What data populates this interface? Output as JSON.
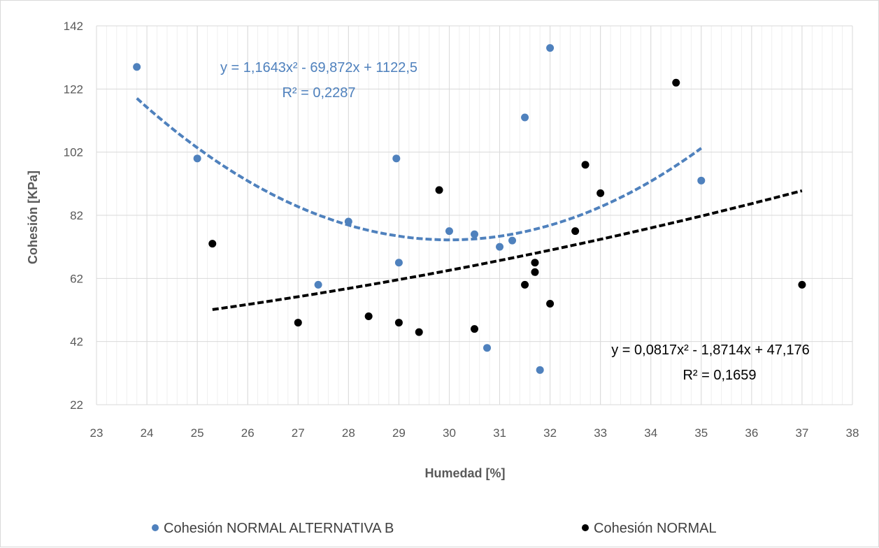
{
  "chart_data": {
    "type": "scatter",
    "xlabel": "Humedad [%]",
    "ylabel": "Cohesión [KPa]",
    "xlim": [
      23,
      38
    ],
    "ylim": [
      22,
      142
    ],
    "x_ticks": [
      "23",
      "24",
      "25",
      "26",
      "27",
      "28",
      "29",
      "30",
      "31",
      "32",
      "33",
      "34",
      "35",
      "36",
      "37",
      "38"
    ],
    "y_ticks": [
      "22",
      "42",
      "62",
      "82",
      "102",
      "122",
      "142"
    ],
    "grid": "vertical major and minor, horizontal major",
    "legend_position": "bottom",
    "series": [
      {
        "name": "Cohesión NORMAL ALTERNATIVA B",
        "color": "#4f81bd",
        "points": [
          [
            23.8,
            129
          ],
          [
            25.0,
            100
          ],
          [
            27.4,
            60
          ],
          [
            28.0,
            80
          ],
          [
            28.95,
            100
          ],
          [
            29.0,
            67
          ],
          [
            30.0,
            77
          ],
          [
            30.5,
            76
          ],
          [
            30.75,
            40
          ],
          [
            31.0,
            72
          ],
          [
            31.25,
            74
          ],
          [
            31.5,
            113
          ],
          [
            31.8,
            33
          ],
          [
            32.0,
            135
          ],
          [
            35.0,
            93
          ]
        ],
        "trendline": {
          "type": "polynomial",
          "coefficients": [
            1.1643,
            -69.872,
            1122.5
          ],
          "x_range": [
            23.8,
            35.0
          ],
          "equation": "y = 1,1643x² - 69,872x + 1122,5",
          "r2": "R² = 0,2287"
        }
      },
      {
        "name": "Cohesión NORMAL",
        "color": "#000000",
        "points": [
          [
            25.3,
            73
          ],
          [
            27.0,
            48
          ],
          [
            28.4,
            50
          ],
          [
            29.0,
            48
          ],
          [
            29.4,
            45
          ],
          [
            29.8,
            90
          ],
          [
            30.5,
            46
          ],
          [
            31.5,
            60
          ],
          [
            31.7,
            67
          ],
          [
            31.7,
            64
          ],
          [
            32.0,
            54
          ],
          [
            32.5,
            77
          ],
          [
            32.7,
            98
          ],
          [
            33.0,
            89
          ],
          [
            34.5,
            124
          ],
          [
            37.0,
            60
          ]
        ],
        "trendline": {
          "type": "polynomial",
          "coefficients": [
            0.0817,
            -1.8714,
            47.176
          ],
          "x_range": [
            25.3,
            37.0
          ],
          "equation": "y = 0,0817x² - 1,8714x + 47,176",
          "r2": "R² = 0,1659"
        }
      }
    ]
  },
  "legend": {
    "items": [
      {
        "label": "Cohesión NORMAL ALTERNATIVA B",
        "color": "#4f81bd"
      },
      {
        "label": "Cohesión NORMAL",
        "color": "#000000"
      }
    ]
  }
}
